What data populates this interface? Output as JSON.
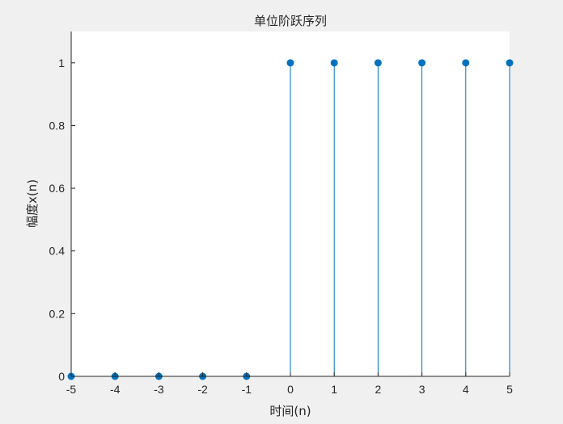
{
  "chart_data": {
    "type": "stem",
    "title": "单位阶跃序列",
    "xlabel": "时间(n)",
    "ylabel": "幅度x(n)",
    "x": [
      -5,
      -4,
      -3,
      -2,
      -1,
      0,
      1,
      2,
      3,
      4,
      5
    ],
    "values": [
      0,
      0,
      0,
      0,
      0,
      1,
      1,
      1,
      1,
      1,
      1
    ],
    "xlim": [
      -5,
      5
    ],
    "ylim": [
      0,
      1.1
    ],
    "xticks": [
      "-5",
      "-4",
      "-3",
      "-2",
      "-1",
      "0",
      "1",
      "2",
      "3",
      "4",
      "5"
    ],
    "yticks": [
      "0",
      "0.2",
      "0.4",
      "0.6",
      "0.8",
      "1"
    ],
    "grid": false,
    "color": "#0072BD"
  }
}
